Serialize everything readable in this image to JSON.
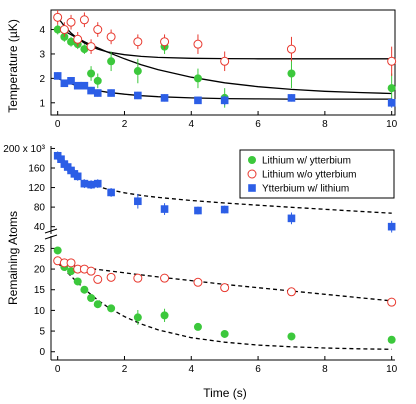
{
  "chart_data": [
    {
      "type": "scatter",
      "panel": "temperature",
      "ylabel": "Temperature (µK)",
      "xlim": [
        -0.2,
        10.1
      ],
      "ylim": [
        0.5,
        4.8
      ],
      "x_ticks": [
        0,
        2,
        4,
        6,
        8,
        10
      ],
      "y_ticks": [
        1,
        2,
        3,
        4
      ],
      "series": [
        {
          "key": "li_with_yb",
          "marker": "filled-circle",
          "color": "#3cc83c",
          "x": [
            0,
            0.2,
            0.4,
            0.6,
            0.8,
            1.0,
            1.2,
            1.6,
            2.4,
            3.2,
            4.2,
            5.0,
            7.0,
            10.0
          ],
          "y": [
            4.0,
            3.7,
            3.5,
            3.4,
            3.2,
            2.2,
            1.9,
            2.7,
            2.3,
            3.3,
            2.0,
            1.2,
            2.2,
            1.6
          ],
          "err": [
            0.2,
            0.2,
            0.2,
            0.2,
            0.2,
            0.3,
            0.3,
            0.4,
            0.5,
            0.3,
            0.4,
            0.4,
            0.6,
            0.6
          ]
        },
        {
          "key": "li_without_yb",
          "marker": "open-circle",
          "color": "#e8392f",
          "x": [
            0,
            0.2,
            0.4,
            0.6,
            0.8,
            1.0,
            1.2,
            1.6,
            2.4,
            3.2,
            4.2,
            5.0,
            7.0,
            10.0
          ],
          "y": [
            4.5,
            4.0,
            4.3,
            3.6,
            4.4,
            3.3,
            4.0,
            3.7,
            3.5,
            3.5,
            3.4,
            2.7,
            3.2,
            2.7
          ],
          "err": [
            0.3,
            0.3,
            0.3,
            0.3,
            0.3,
            0.3,
            0.3,
            0.3,
            0.3,
            0.3,
            0.4,
            0.4,
            0.5,
            0.6
          ]
        },
        {
          "key": "yb_with_li",
          "marker": "filled-square",
          "color": "#2c5ee6",
          "x": [
            0,
            0.2,
            0.4,
            0.6,
            0.8,
            1.0,
            1.2,
            1.6,
            2.4,
            3.2,
            4.2,
            5.0,
            7.0,
            10.0
          ],
          "y": [
            2.1,
            1.8,
            1.9,
            1.7,
            1.7,
            1.5,
            1.4,
            1.4,
            1.3,
            1.2,
            1.1,
            1.1,
            1.2,
            1.0
          ],
          "err": [
            0.15,
            0.15,
            0.15,
            0.15,
            0.15,
            0.15,
            0.15,
            0.15,
            0.15,
            0.15,
            0.15,
            0.2,
            0.15,
            0.2
          ]
        }
      ],
      "fit_curves": [
        {
          "style": "solid",
          "x": [
            0,
            0.2,
            0.4,
            0.6,
            0.8,
            1,
            1.2,
            1.5,
            2,
            2.5,
            3,
            4,
            5,
            6,
            7,
            8,
            9,
            10
          ],
          "y": [
            4.5,
            4.14,
            3.86,
            3.63,
            3.45,
            3.31,
            3.2,
            3.08,
            2.97,
            2.9,
            2.86,
            2.82,
            2.81,
            2.8,
            2.8,
            2.8,
            2.8,
            2.8
          ]
        },
        {
          "style": "solid",
          "x": [
            0,
            0.2,
            0.4,
            0.6,
            0.8,
            1,
            1.2,
            1.5,
            2,
            2.5,
            3,
            4,
            5,
            6,
            7,
            8,
            9,
            10
          ],
          "y": [
            4.1,
            3.94,
            3.79,
            3.64,
            3.5,
            3.37,
            3.25,
            3.07,
            2.8,
            2.56,
            2.36,
            2.05,
            1.82,
            1.66,
            1.55,
            1.47,
            1.42,
            1.38
          ]
        },
        {
          "style": "solid",
          "x": [
            0,
            0.2,
            0.4,
            0.6,
            0.8,
            1,
            1.2,
            1.5,
            2,
            2.5,
            3,
            4,
            5,
            6,
            7,
            8,
            9,
            10
          ],
          "y": [
            2.0,
            1.88,
            1.78,
            1.69,
            1.62,
            1.55,
            1.5,
            1.43,
            1.35,
            1.29,
            1.25,
            1.2,
            1.17,
            1.16,
            1.15,
            1.15,
            1.15,
            1.15
          ]
        }
      ]
    },
    {
      "type": "scatter",
      "panel": "yb_atoms",
      "xlim": [
        -0.2,
        10.1
      ],
      "ylim": [
        25000,
        205000
      ],
      "y_ticks": [
        40000,
        80000,
        120000,
        160000,
        200000
      ],
      "y_tick_labels": [
        "40",
        "80",
        "120",
        "160",
        "200 x 10³"
      ],
      "series": [
        {
          "key": "yb_with_li",
          "marker": "filled-square",
          "color": "#2c5ee6",
          "x": [
            0,
            0.1,
            0.2,
            0.3,
            0.4,
            0.5,
            0.6,
            0.8,
            1.0,
            1.2,
            1.6,
            2.4,
            3.2,
            4.2,
            5.0,
            7.0,
            10.0
          ],
          "y": [
            185000,
            178000,
            168000,
            162000,
            155000,
            148000,
            143000,
            128000,
            126000,
            128000,
            110000,
            92000,
            76000,
            73000,
            75000,
            57000,
            40000
          ],
          "err": [
            9000,
            9000,
            9000,
            9000,
            9000,
            9000,
            9000,
            9000,
            9000,
            9000,
            9000,
            15000,
            12000,
            8000,
            8000,
            12000,
            12000
          ]
        }
      ],
      "fit_curves": [
        {
          "style": "dashed",
          "x": [
            0,
            0.2,
            0.4,
            0.6,
            0.8,
            1,
            1.2,
            1.5,
            2,
            2.5,
            3,
            4,
            5,
            6,
            7,
            8,
            9,
            10
          ],
          "y": [
            183000,
            165900,
            152600,
            142200,
            134000,
            127600,
            122500,
            116500,
            109300,
            104000,
            99900,
            93500,
            88500,
            84000,
            79700,
            75500,
            71500,
            67500
          ]
        }
      ]
    },
    {
      "type": "scatter",
      "panel": "li_atoms",
      "xlabel": "Time (s)",
      "ylabel": "Remaining Atoms",
      "xlim": [
        -0.2,
        10.1
      ],
      "ylim": [
        -2,
        28
      ],
      "x_ticks": [
        0,
        2,
        4,
        6,
        8,
        10
      ],
      "y_ticks": [
        0,
        5,
        10,
        15,
        20,
        25
      ],
      "series": [
        {
          "key": "li_with_yb",
          "marker": "filled-circle",
          "color": "#3cc83c",
          "x": [
            0,
            0.2,
            0.4,
            0.6,
            0.8,
            1.0,
            1.2,
            1.6,
            2.4,
            3.2,
            4.2,
            5.0,
            7.0,
            10.0
          ],
          "y": [
            24.5,
            20.5,
            19.5,
            17.0,
            15.0,
            13.0,
            11.5,
            10.5,
            8.3,
            8.8,
            6.0,
            4.3,
            3.7,
            2.9
          ],
          "err": [
            0.8,
            0.8,
            0.8,
            0.8,
            0.8,
            0.8,
            0.8,
            0.8,
            1.8,
            1.6,
            0.8,
            0.8,
            0.8,
            0.8
          ]
        },
        {
          "key": "li_without_yb",
          "marker": "open-circle",
          "color": "#e8392f",
          "x": [
            0,
            0.2,
            0.4,
            0.6,
            0.8,
            1.0,
            1.2,
            1.6,
            2.4,
            3.2,
            4.2,
            5.0,
            7.0,
            10.0
          ],
          "y": [
            22.0,
            21.5,
            21.5,
            20.0,
            20.0,
            19.5,
            17.5,
            18.0,
            17.8,
            17.8,
            16.8,
            15.5,
            14.5,
            12.0
          ],
          "err": [
            0.8,
            0.8,
            0.8,
            0.8,
            0.8,
            0.8,
            0.8,
            0.8,
            0.8,
            0.8,
            0.8,
            0.8,
            0.8,
            0.8
          ]
        }
      ],
      "fit_curves": [
        {
          "style": "dashed",
          "x": [
            0,
            0.2,
            0.4,
            0.6,
            0.8,
            1,
            1.2,
            1.5,
            2,
            2.5,
            3,
            4,
            5,
            6,
            7,
            8,
            9,
            10
          ],
          "y": [
            21.5,
            21.2,
            20.9,
            20.6,
            20.4,
            20.1,
            19.9,
            19.6,
            19.1,
            18.6,
            18.1,
            17.2,
            16.3,
            15.5,
            14.7,
            13.9,
            13.1,
            12.3
          ]
        },
        {
          "style": "dashed",
          "x": [
            0,
            0.2,
            0.4,
            0.6,
            0.8,
            1,
            1.2,
            1.5,
            2,
            2.5,
            3,
            4,
            5,
            6,
            7,
            8,
            9,
            10
          ],
          "y": [
            21.5,
            19.9,
            18.3,
            16.7,
            15.2,
            13.8,
            12.5,
            10.8,
            8.5,
            6.7,
            5.3,
            3.4,
            2.3,
            1.6,
            1.2,
            0.9,
            0.7,
            0.6
          ]
        }
      ]
    }
  ],
  "legend": {
    "position": "middle-right",
    "entries": [
      {
        "label": "Lithium w/ ytterbium",
        "marker": "filled-circle",
        "color": "#3cc83c"
      },
      {
        "label": "Lithium w/o ytterbium",
        "marker": "open-circle",
        "color": "#e8392f"
      },
      {
        "label": "Ytterbium w/ lithium",
        "marker": "filled-square",
        "color": "#2c5ee6"
      }
    ]
  }
}
